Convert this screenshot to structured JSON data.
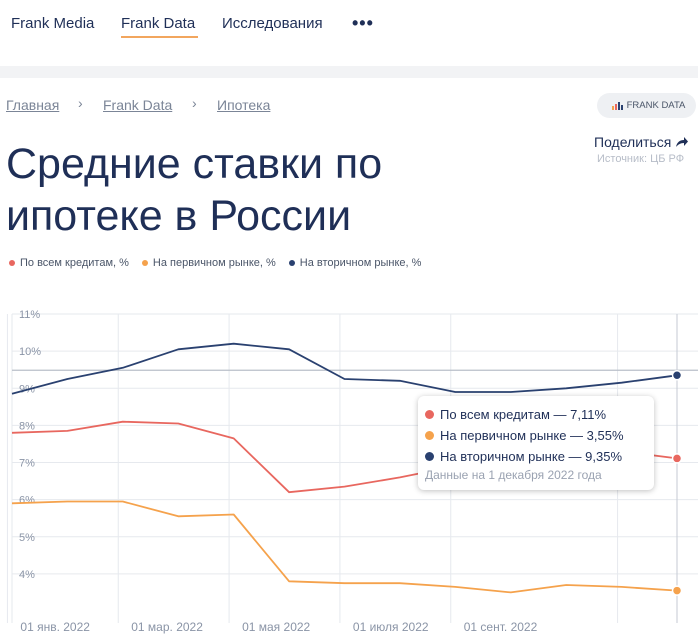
{
  "nav": {
    "items": [
      "Frank Media",
      "Frank Data",
      "Исследования"
    ],
    "more": "•••"
  },
  "breadcrumb": [
    "Главная",
    "Frank Data",
    "Ипотека"
  ],
  "badge": "FRANK DATA",
  "title": "Средние ставки по ипотеке в России",
  "share": "Поделиться",
  "source": "Источник: ЦБ РФ",
  "legend": [
    {
      "label": "По всем кредитам, %",
      "color": "#e8675f"
    },
    {
      "label": "На первичном рынке, %",
      "color": "#f5a24c"
    },
    {
      "label": "На вторичном рынке, %",
      "color": "#2a4170"
    }
  ],
  "tooltip": {
    "rows": [
      {
        "text": "По всем кредитам — 7,11%",
        "color": "#e8675f"
      },
      {
        "text": "На первичном рынке — 3,55%",
        "color": "#f5a24c"
      },
      {
        "text": "На вторичном рынке — 9,35%",
        "color": "#2a4170"
      }
    ],
    "date": "Данные на 1 декабря 2022 года"
  },
  "chart_data": {
    "type": "line",
    "x": [
      "2021-12",
      "2022-01",
      "2022-02",
      "2022-03",
      "2022-04",
      "2022-05",
      "2022-06",
      "2022-07",
      "2022-08",
      "2022-09",
      "2022-10",
      "2022-11",
      "2022-12"
    ],
    "xtick_labels": [
      "01 янв. 2022",
      "01 мар. 2022",
      "01 мая 2022",
      "01 июля 2022",
      "01 сент. 2022"
    ],
    "xtick_index": [
      1,
      3,
      5,
      7,
      9
    ],
    "yticks": [
      "4%",
      "5%",
      "6%",
      "7%",
      "8%",
      "9%",
      "10%",
      "11%"
    ],
    "ylim": [
      3,
      11
    ],
    "highlight_index": 12,
    "series": [
      {
        "name": "На вторичном рынке, %",
        "color": "#2a4170",
        "values": [
          8.85,
          9.25,
          9.55,
          10.05,
          10.2,
          10.05,
          9.25,
          9.2,
          8.9,
          8.9,
          9.0,
          9.15,
          9.35
        ]
      },
      {
        "name": "По всем кредитам, %",
        "color": "#e8675f",
        "values": [
          7.8,
          7.85,
          8.1,
          8.05,
          7.65,
          6.2,
          6.35,
          6.6,
          6.9,
          7.0,
          7.3,
          7.3,
          7.11
        ]
      },
      {
        "name": "На первичном рынке, %",
        "color": "#f5a24c",
        "values": [
          5.9,
          5.95,
          5.95,
          5.55,
          5.6,
          3.8,
          3.75,
          3.75,
          3.65,
          3.5,
          3.7,
          3.65,
          3.55
        ]
      }
    ]
  }
}
